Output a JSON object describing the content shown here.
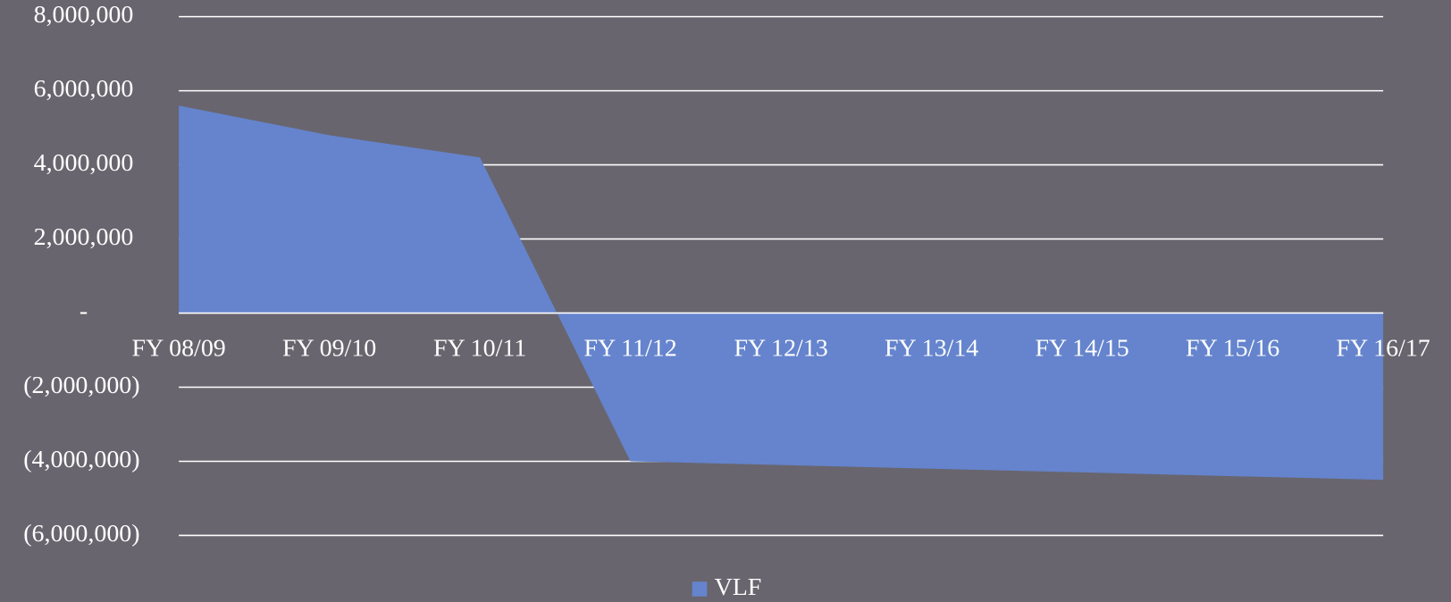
{
  "chart_data": {
    "type": "area",
    "categories": [
      "FY 08/09",
      "FY 09/10",
      "FY 10/11",
      "FY 11/12",
      "FY 12/13",
      "FY 13/14",
      "FY 14/15",
      "FY 15/16",
      "FY 16/17"
    ],
    "series": [
      {
        "name": "VLF",
        "color": "#6584cd",
        "values": [
          5600000,
          4800000,
          4200000,
          -4000000,
          -4100000,
          -4200000,
          -4300000,
          -4400000,
          -4500000
        ]
      }
    ],
    "ylim": [
      -6000000,
      8000000
    ],
    "yticks": [
      {
        "value": -6000000,
        "label": "(6,000,000)"
      },
      {
        "value": -4000000,
        "label": "(4,000,000)"
      },
      {
        "value": -2000000,
        "label": "(2,000,000)"
      },
      {
        "value": 0,
        "label": "-"
      },
      {
        "value": 2000000,
        "label": "2,000,000"
      },
      {
        "value": 4000000,
        "label": "4,000,000"
      },
      {
        "value": 6000000,
        "label": "6,000,000"
      },
      {
        "value": 8000000,
        "label": "8,000,000"
      }
    ],
    "grid": true,
    "legend": "bottom"
  }
}
